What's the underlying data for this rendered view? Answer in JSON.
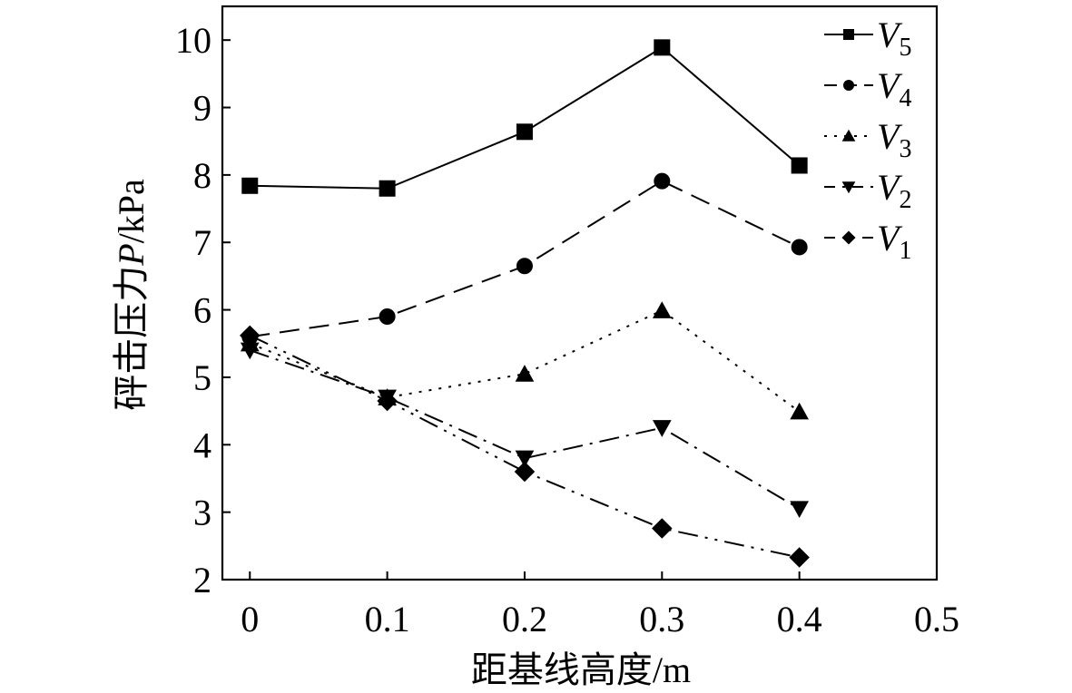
{
  "chart_data": {
    "type": "line",
    "title": "",
    "xlabel": "距基线高度/m",
    "ylabel_prefix": "砰击压力",
    "ylabel_var": "P",
    "ylabel_suffix": "/kPa",
    "x": [
      0,
      0.1,
      0.2,
      0.3,
      0.4
    ],
    "xlim": [
      -0.02,
      0.5
    ],
    "ylim": [
      2,
      10.5
    ],
    "xticks": [
      0,
      0.1,
      0.2,
      0.3,
      0.4,
      0.5
    ],
    "xtick_labels": [
      "0",
      "0.1",
      "0.2",
      "0.3",
      "0.4",
      "0.5"
    ],
    "yticks": [
      2,
      3,
      4,
      5,
      6,
      7,
      8,
      9,
      10
    ],
    "ytick_labels": [
      "2",
      "3",
      "4",
      "5",
      "6",
      "7",
      "8",
      "9",
      "10"
    ],
    "grid": false,
    "legend_position": "top-right",
    "series": [
      {
        "name": "V",
        "sub": "5",
        "values": [
          7.84,
          7.8,
          8.64,
          9.89,
          8.14
        ],
        "marker": "square",
        "dash": "solid"
      },
      {
        "name": "V",
        "sub": "4",
        "values": [
          5.6,
          5.9,
          6.65,
          7.91,
          6.93
        ],
        "marker": "circle",
        "dash": "dashed"
      },
      {
        "name": "V",
        "sub": "3",
        "values": [
          5.5,
          4.7,
          5.05,
          5.99,
          4.49
        ],
        "marker": "triangle-up",
        "dash": "dotted"
      },
      {
        "name": "V",
        "sub": "2",
        "values": [
          5.4,
          4.7,
          3.8,
          4.25,
          3.05
        ],
        "marker": "triangle-down",
        "dash": "dashdot"
      },
      {
        "name": "V",
        "sub": "1",
        "values": [
          5.62,
          4.65,
          3.6,
          2.76,
          2.33
        ],
        "marker": "diamond",
        "dash": "dashdotdot"
      }
    ]
  }
}
